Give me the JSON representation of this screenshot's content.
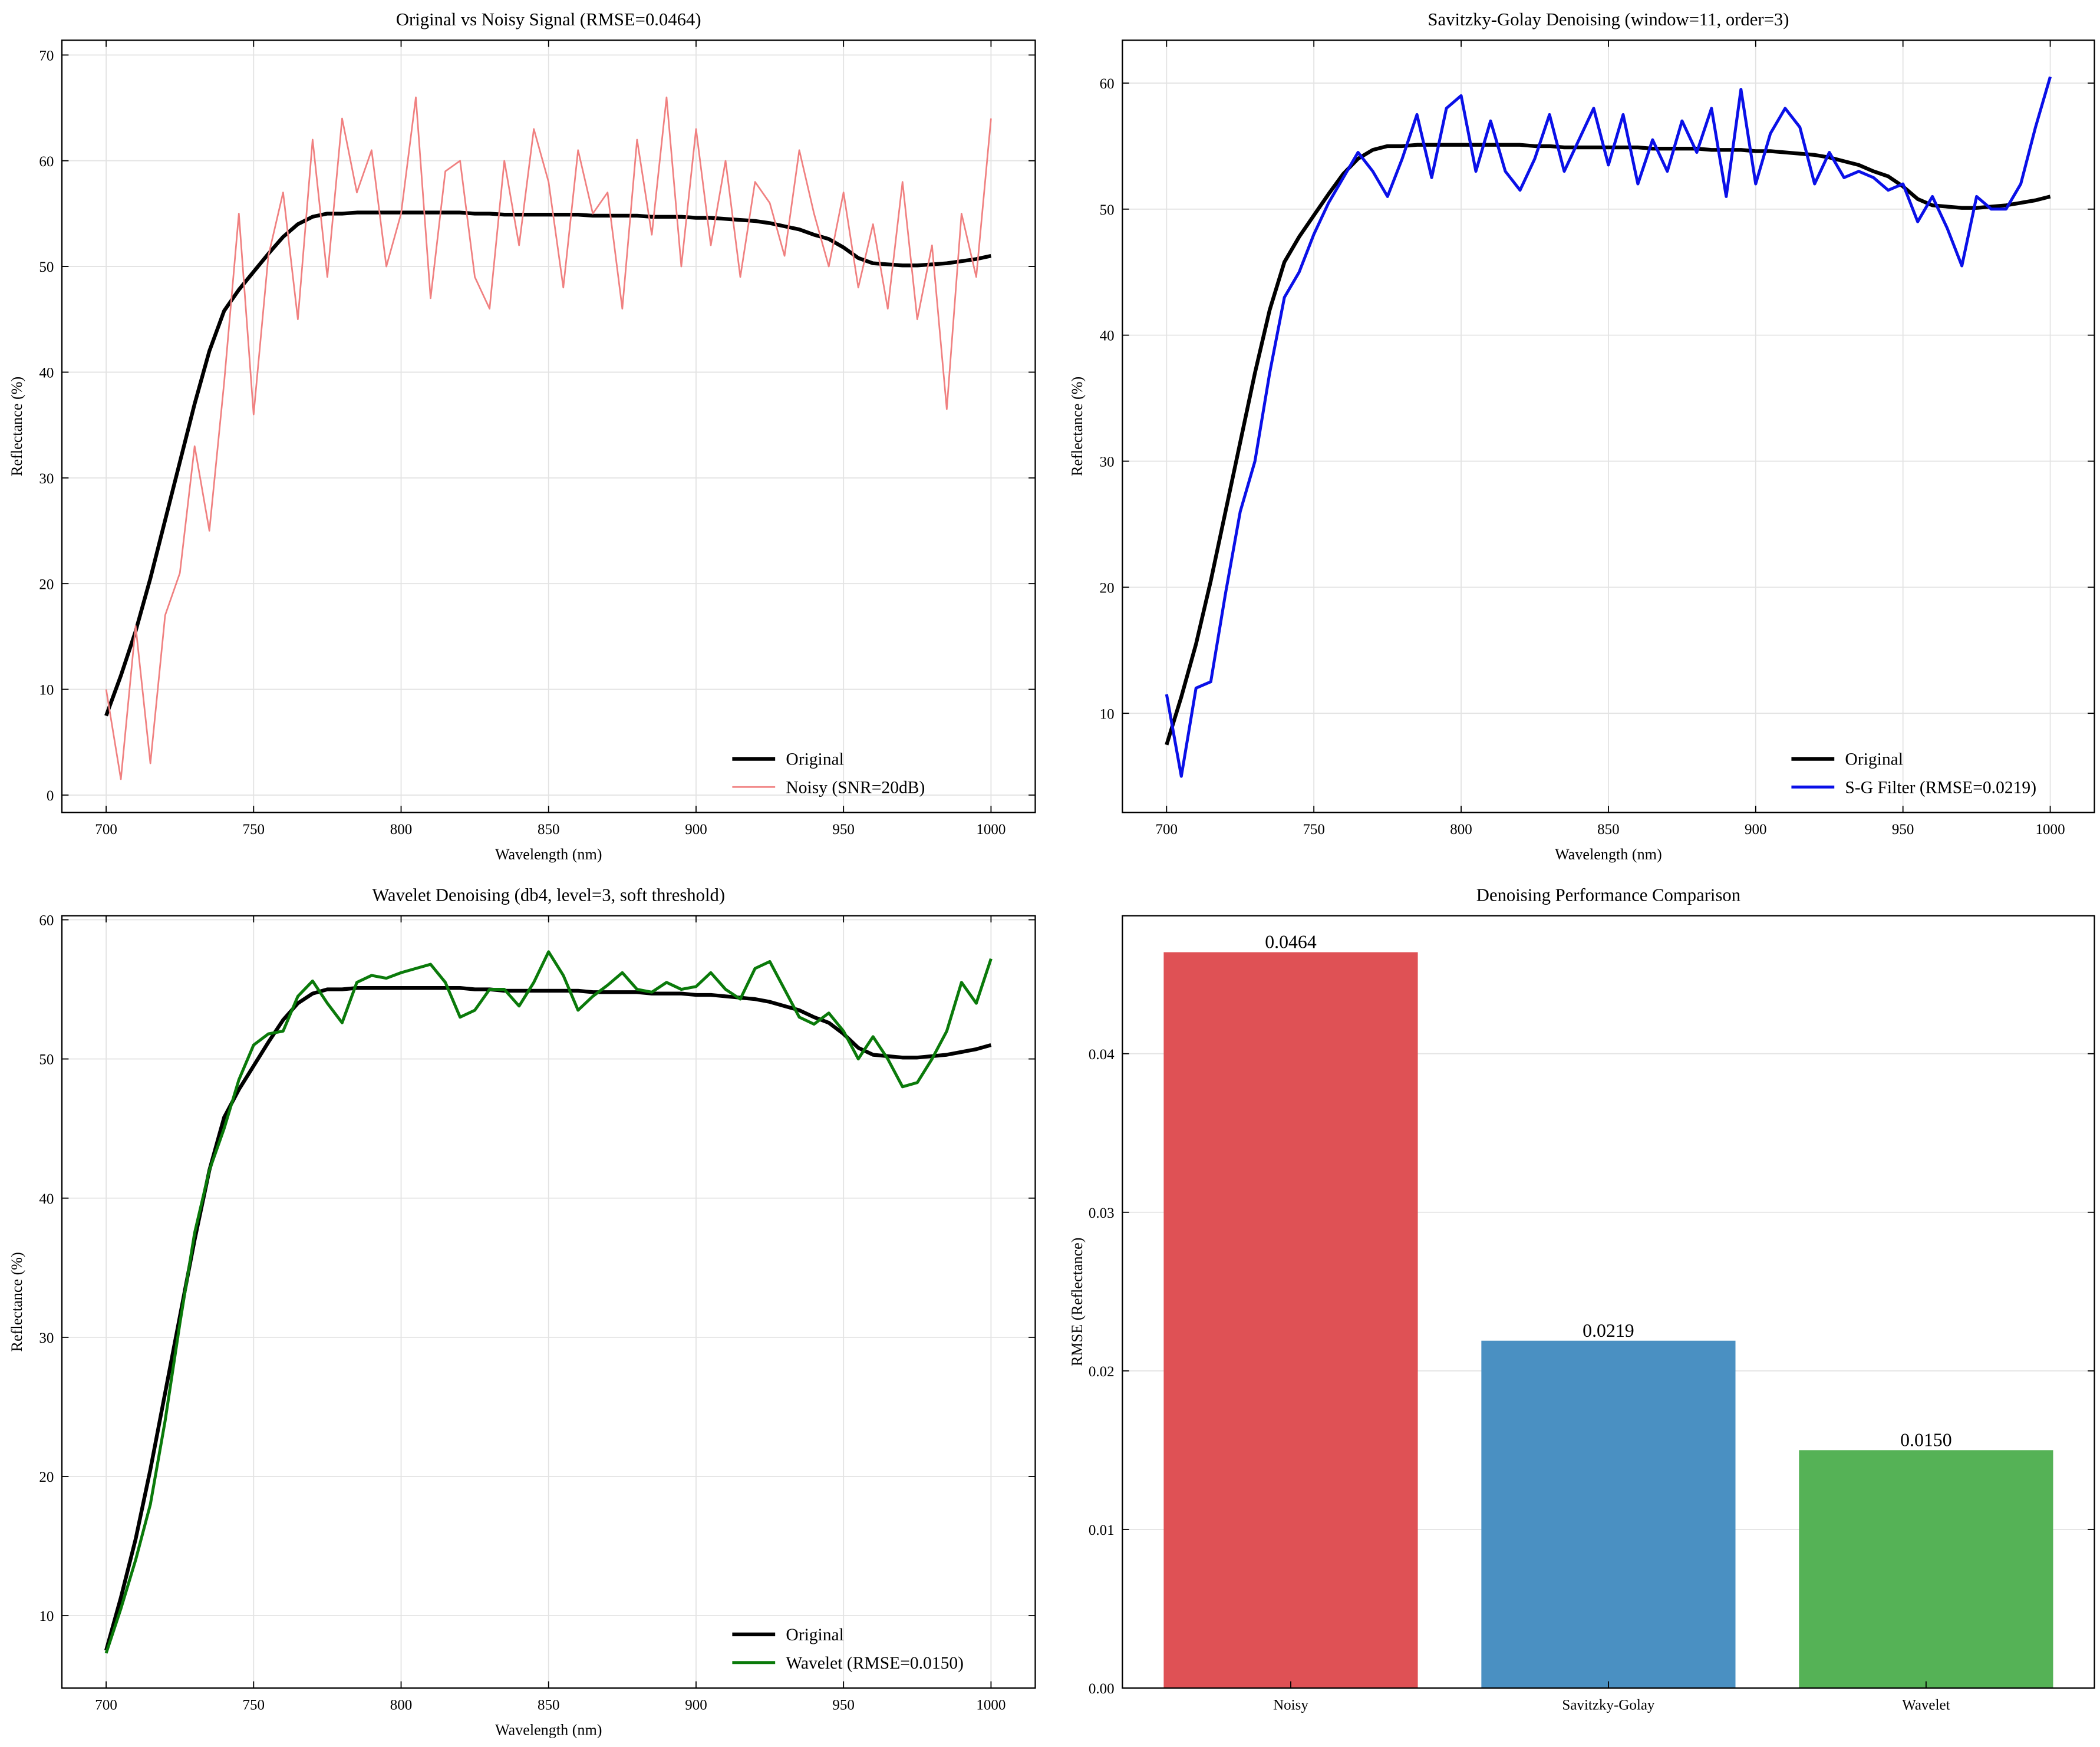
{
  "chart_data": [
    {
      "type": "line",
      "title": "Original vs Noisy Signal (RMSE=0.0464)",
      "xlabel": "Wavelength (nm)",
      "ylabel": "Reflectance (%)",
      "x": [
        700,
        705,
        710,
        715,
        720,
        725,
        730,
        735,
        740,
        745,
        750,
        755,
        760,
        765,
        770,
        775,
        780,
        785,
        790,
        795,
        800,
        805,
        810,
        815,
        820,
        825,
        830,
        835,
        840,
        845,
        850,
        855,
        860,
        865,
        870,
        875,
        880,
        885,
        890,
        895,
        900,
        905,
        910,
        915,
        920,
        925,
        930,
        935,
        940,
        945,
        950,
        955,
        960,
        965,
        970,
        975,
        980,
        985,
        990,
        995,
        1000
      ],
      "series": [
        {
          "name": "Original",
          "color": "#000000",
          "values": [
            7.5,
            11.3,
            15.5,
            20.5,
            26,
            31.5,
            37,
            42,
            45.8,
            47.8,
            49.5,
            51.2,
            52.8,
            54,
            54.7,
            55,
            55,
            55.1,
            55.1,
            55.1,
            55.1,
            55.1,
            55.1,
            55.1,
            55.1,
            55,
            55,
            54.9,
            54.9,
            54.9,
            54.9,
            54.9,
            54.9,
            54.8,
            54.8,
            54.8,
            54.8,
            54.7,
            54.7,
            54.7,
            54.6,
            54.6,
            54.5,
            54.4,
            54.3,
            54.1,
            53.8,
            53.5,
            53,
            52.6,
            51.8,
            50.8,
            50.3,
            50.2,
            50.1,
            50.1,
            50.2,
            50.3,
            50.5,
            50.7,
            51
          ]
        },
        {
          "name": "Noisy (SNR=20dB)",
          "color": "#f08080",
          "values": [
            10,
            1.5,
            16,
            3,
            17,
            21,
            33,
            25,
            39,
            55,
            36,
            51,
            57,
            45,
            62,
            49,
            64,
            57,
            61,
            50,
            55,
            66,
            47,
            59,
            60,
            49,
            46,
            60,
            52,
            63,
            58,
            48,
            61,
            55,
            57,
            46,
            62,
            53,
            66,
            50,
            63,
            52,
            60,
            49,
            58,
            56,
            51,
            61,
            55,
            50,
            57,
            48,
            54,
            46,
            58,
            45,
            52,
            36.5,
            55,
            49,
            64
          ]
        }
      ],
      "xlim": [
        685,
        1015
      ],
      "xticks": [
        700,
        750,
        800,
        850,
        900,
        950,
        1000
      ],
      "ylim": [
        -1.65,
        71.4
      ],
      "yticks": [
        0,
        10,
        20,
        30,
        40,
        50,
        60,
        70
      ],
      "grid": true,
      "legend": "lower right"
    },
    {
      "type": "line",
      "title": "Savitzky-Golay Denoising (window=11, order=3)",
      "xlabel": "Wavelength (nm)",
      "ylabel": "Reflectance (%)",
      "x": [
        700,
        705,
        710,
        715,
        720,
        725,
        730,
        735,
        740,
        745,
        750,
        755,
        760,
        765,
        770,
        775,
        780,
        785,
        790,
        795,
        800,
        805,
        810,
        815,
        820,
        825,
        830,
        835,
        840,
        845,
        850,
        855,
        860,
        865,
        870,
        875,
        880,
        885,
        890,
        895,
        900,
        905,
        910,
        915,
        920,
        925,
        930,
        935,
        940,
        945,
        950,
        955,
        960,
        965,
        970,
        975,
        980,
        985,
        990,
        995,
        1000
      ],
      "series": [
        {
          "name": "Original",
          "color": "#000000",
          "values": [
            7.5,
            11.3,
            15.5,
            20.5,
            26,
            31.5,
            37,
            42,
            45.8,
            47.8,
            49.5,
            51.2,
            52.8,
            54,
            54.7,
            55,
            55,
            55.1,
            55.1,
            55.1,
            55.1,
            55.1,
            55.1,
            55.1,
            55.1,
            55,
            55,
            54.9,
            54.9,
            54.9,
            54.9,
            54.9,
            54.9,
            54.8,
            54.8,
            54.8,
            54.8,
            54.7,
            54.7,
            54.7,
            54.6,
            54.6,
            54.5,
            54.4,
            54.3,
            54.1,
            53.8,
            53.5,
            53,
            52.6,
            51.8,
            50.8,
            50.3,
            50.2,
            50.1,
            50.1,
            50.2,
            50.3,
            50.5,
            50.7,
            51
          ]
        },
        {
          "name": "S-G Filter (RMSE=0.0219)",
          "color": "#0a10e8",
          "values": [
            11.5,
            5,
            12,
            12.5,
            19.5,
            26,
            30,
            37,
            43,
            45,
            48,
            50.5,
            52.5,
            54.5,
            53,
            51,
            54,
            57.5,
            52.5,
            58,
            59,
            53,
            57,
            53,
            51.5,
            54,
            57.5,
            53,
            55.5,
            58,
            53.5,
            57.5,
            52,
            55.5,
            53,
            57,
            54.5,
            58,
            51,
            59.5,
            52,
            56,
            58,
            56.5,
            52,
            54.5,
            52.5,
            53,
            52.5,
            51.5,
            52,
            49,
            51,
            48.5,
            45.5,
            51,
            50,
            50,
            52,
            56.5,
            60.5
          ]
        }
      ],
      "xlim": [
        685,
        1015
      ],
      "xticks": [
        700,
        750,
        800,
        850,
        900,
        950,
        1000
      ],
      "ylim": [
        2.13,
        63.4
      ],
      "yticks": [
        10,
        20,
        30,
        40,
        50,
        60
      ],
      "grid": true,
      "legend": "lower right"
    },
    {
      "type": "line",
      "title": "Wavelet Denoising (db4, level=3, soft threshold)",
      "xlabel": "Wavelength (nm)",
      "ylabel": "Reflectance (%)",
      "x": [
        700,
        705,
        710,
        715,
        720,
        725,
        730,
        735,
        740,
        745,
        750,
        755,
        760,
        765,
        770,
        775,
        780,
        785,
        790,
        795,
        800,
        805,
        810,
        815,
        820,
        825,
        830,
        835,
        840,
        845,
        850,
        855,
        860,
        865,
        870,
        875,
        880,
        885,
        890,
        895,
        900,
        905,
        910,
        915,
        920,
        925,
        930,
        935,
        940,
        945,
        950,
        955,
        960,
        965,
        970,
        975,
        980,
        985,
        990,
        995,
        1000
      ],
      "series": [
        {
          "name": "Original",
          "color": "#000000",
          "values": [
            7.5,
            11.3,
            15.5,
            20.5,
            26,
            31.5,
            37,
            42,
            45.8,
            47.8,
            49.5,
            51.2,
            52.8,
            54,
            54.7,
            55,
            55,
            55.1,
            55.1,
            55.1,
            55.1,
            55.1,
            55.1,
            55.1,
            55.1,
            55,
            55,
            54.9,
            54.9,
            54.9,
            54.9,
            54.9,
            54.9,
            54.8,
            54.8,
            54.8,
            54.8,
            54.7,
            54.7,
            54.7,
            54.6,
            54.6,
            54.5,
            54.4,
            54.3,
            54.1,
            53.8,
            53.5,
            53,
            52.6,
            51.8,
            50.8,
            50.3,
            50.2,
            50.1,
            50.1,
            50.2,
            50.3,
            50.5,
            50.7,
            51
          ]
        },
        {
          "name": "Wavelet (RMSE=0.0150)",
          "color": "#0a7a0a",
          "values": [
            7.3,
            10.5,
            14,
            18,
            24,
            31,
            37.5,
            42,
            45,
            48.5,
            51,
            51.8,
            52,
            54.5,
            55.6,
            54,
            52.6,
            55.5,
            56,
            55.8,
            56.2,
            56.5,
            56.8,
            55.5,
            53,
            53.5,
            55,
            55,
            53.8,
            55.5,
            57.7,
            56,
            53.5,
            54.5,
            55.3,
            56.2,
            55,
            54.8,
            55.5,
            55,
            55.2,
            56.2,
            55,
            54.3,
            56.5,
            57,
            55,
            53,
            52.5,
            53.3,
            52,
            50,
            51.6,
            50,
            48,
            48.3,
            50,
            52,
            55.5,
            54,
            57.2
          ]
        }
      ],
      "xlim": [
        685,
        1015
      ],
      "xticks": [
        700,
        750,
        800,
        850,
        900,
        950,
        1000
      ],
      "ylim": [
        4.8,
        60.29
      ],
      "yticks": [
        10,
        20,
        30,
        40,
        50,
        60
      ],
      "grid": true,
      "legend": "lower right"
    },
    {
      "type": "bar",
      "title": "Denoising Performance Comparison",
      "ylabel": "RMSE (Reflectance)",
      "categories": [
        "Noisy",
        "Savitzky-Golay",
        "Wavelet"
      ],
      "values": [
        0.0464,
        0.0219,
        0.015
      ],
      "value_labels": [
        "0.0464",
        "0.0219",
        "0.0150"
      ],
      "colors": [
        "#df5155",
        "#4a90c2",
        "#55b256"
      ],
      "ylim": [
        0,
        0.0487
      ],
      "yticks": [
        {
          "value": 0,
          "label": "0.00"
        },
        0.01,
        0.02,
        0.03,
        0.04
      ],
      "grid": true
    }
  ]
}
